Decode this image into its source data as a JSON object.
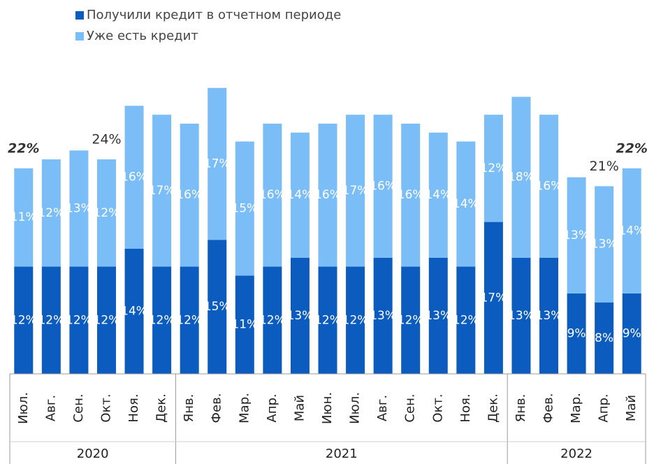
{
  "chart_data": {
    "type": "stacked_bar",
    "categories": [
      "Июл.",
      "Авг.",
      "Сен.",
      "Окт.",
      "Ноя.",
      "Дек.",
      "Янв.",
      "Фев.",
      "Мар.",
      "Апр.",
      "Май",
      "Июн.",
      "Июл.",
      "Авг.",
      "Сен.",
      "Окт.",
      "Ноя.",
      "Дек.",
      "Янв.",
      "Фев.",
      "Мар.",
      "Апр.",
      "Май"
    ],
    "groups": [
      {
        "label": "2020",
        "count": 6
      },
      {
        "label": "2021",
        "count": 12
      },
      {
        "label": "2022",
        "count": 5
      }
    ],
    "series": [
      {
        "name": "Получили кредит в отчетном периоде",
        "color": "#0b5cbe",
        "values": [
          12,
          12,
          12,
          12,
          14,
          12,
          12,
          15,
          11,
          12,
          13,
          12,
          12,
          13,
          12,
          13,
          12,
          17,
          13,
          13,
          9,
          8,
          9
        ],
        "value_labels": [
          "12%",
          "12%",
          "12%",
          "12%",
          "14%",
          "12%",
          "12%",
          "15%",
          "11%",
          "12%",
          "13%",
          "12%",
          "12%",
          "13%",
          "12%",
          "13%",
          "12%",
          "17%",
          "13%",
          "13%",
          "9%",
          "8%",
          "9%"
        ]
      },
      {
        "name": "Уже есть кредит",
        "color": "#7bbdf6",
        "values": [
          11,
          12,
          13,
          12,
          16,
          17,
          16,
          17,
          15,
          16,
          14,
          16,
          17,
          16,
          16,
          14,
          14,
          12,
          18,
          16,
          13,
          13,
          14
        ],
        "value_labels": [
          "11%",
          "12%",
          "13%",
          "12%",
          "16%",
          "17%",
          "16%",
          "17%",
          "15%",
          "16%",
          "14%",
          "16%",
          "17%",
          "16%",
          "16%",
          "14%",
          "14%",
          "12%",
          "18%",
          "16%",
          "13%",
          "13%",
          "14%"
        ]
      }
    ],
    "annotations": [
      {
        "text": "22%",
        "category_index": 0,
        "bold": true
      },
      {
        "text": "24%",
        "category_index": 3,
        "bold": false
      },
      {
        "text": "21%",
        "category_index": 21,
        "bold": false
      },
      {
        "text": "22%",
        "category_index": 22,
        "bold": true
      }
    ],
    "ylim": [
      0,
      33
    ]
  }
}
